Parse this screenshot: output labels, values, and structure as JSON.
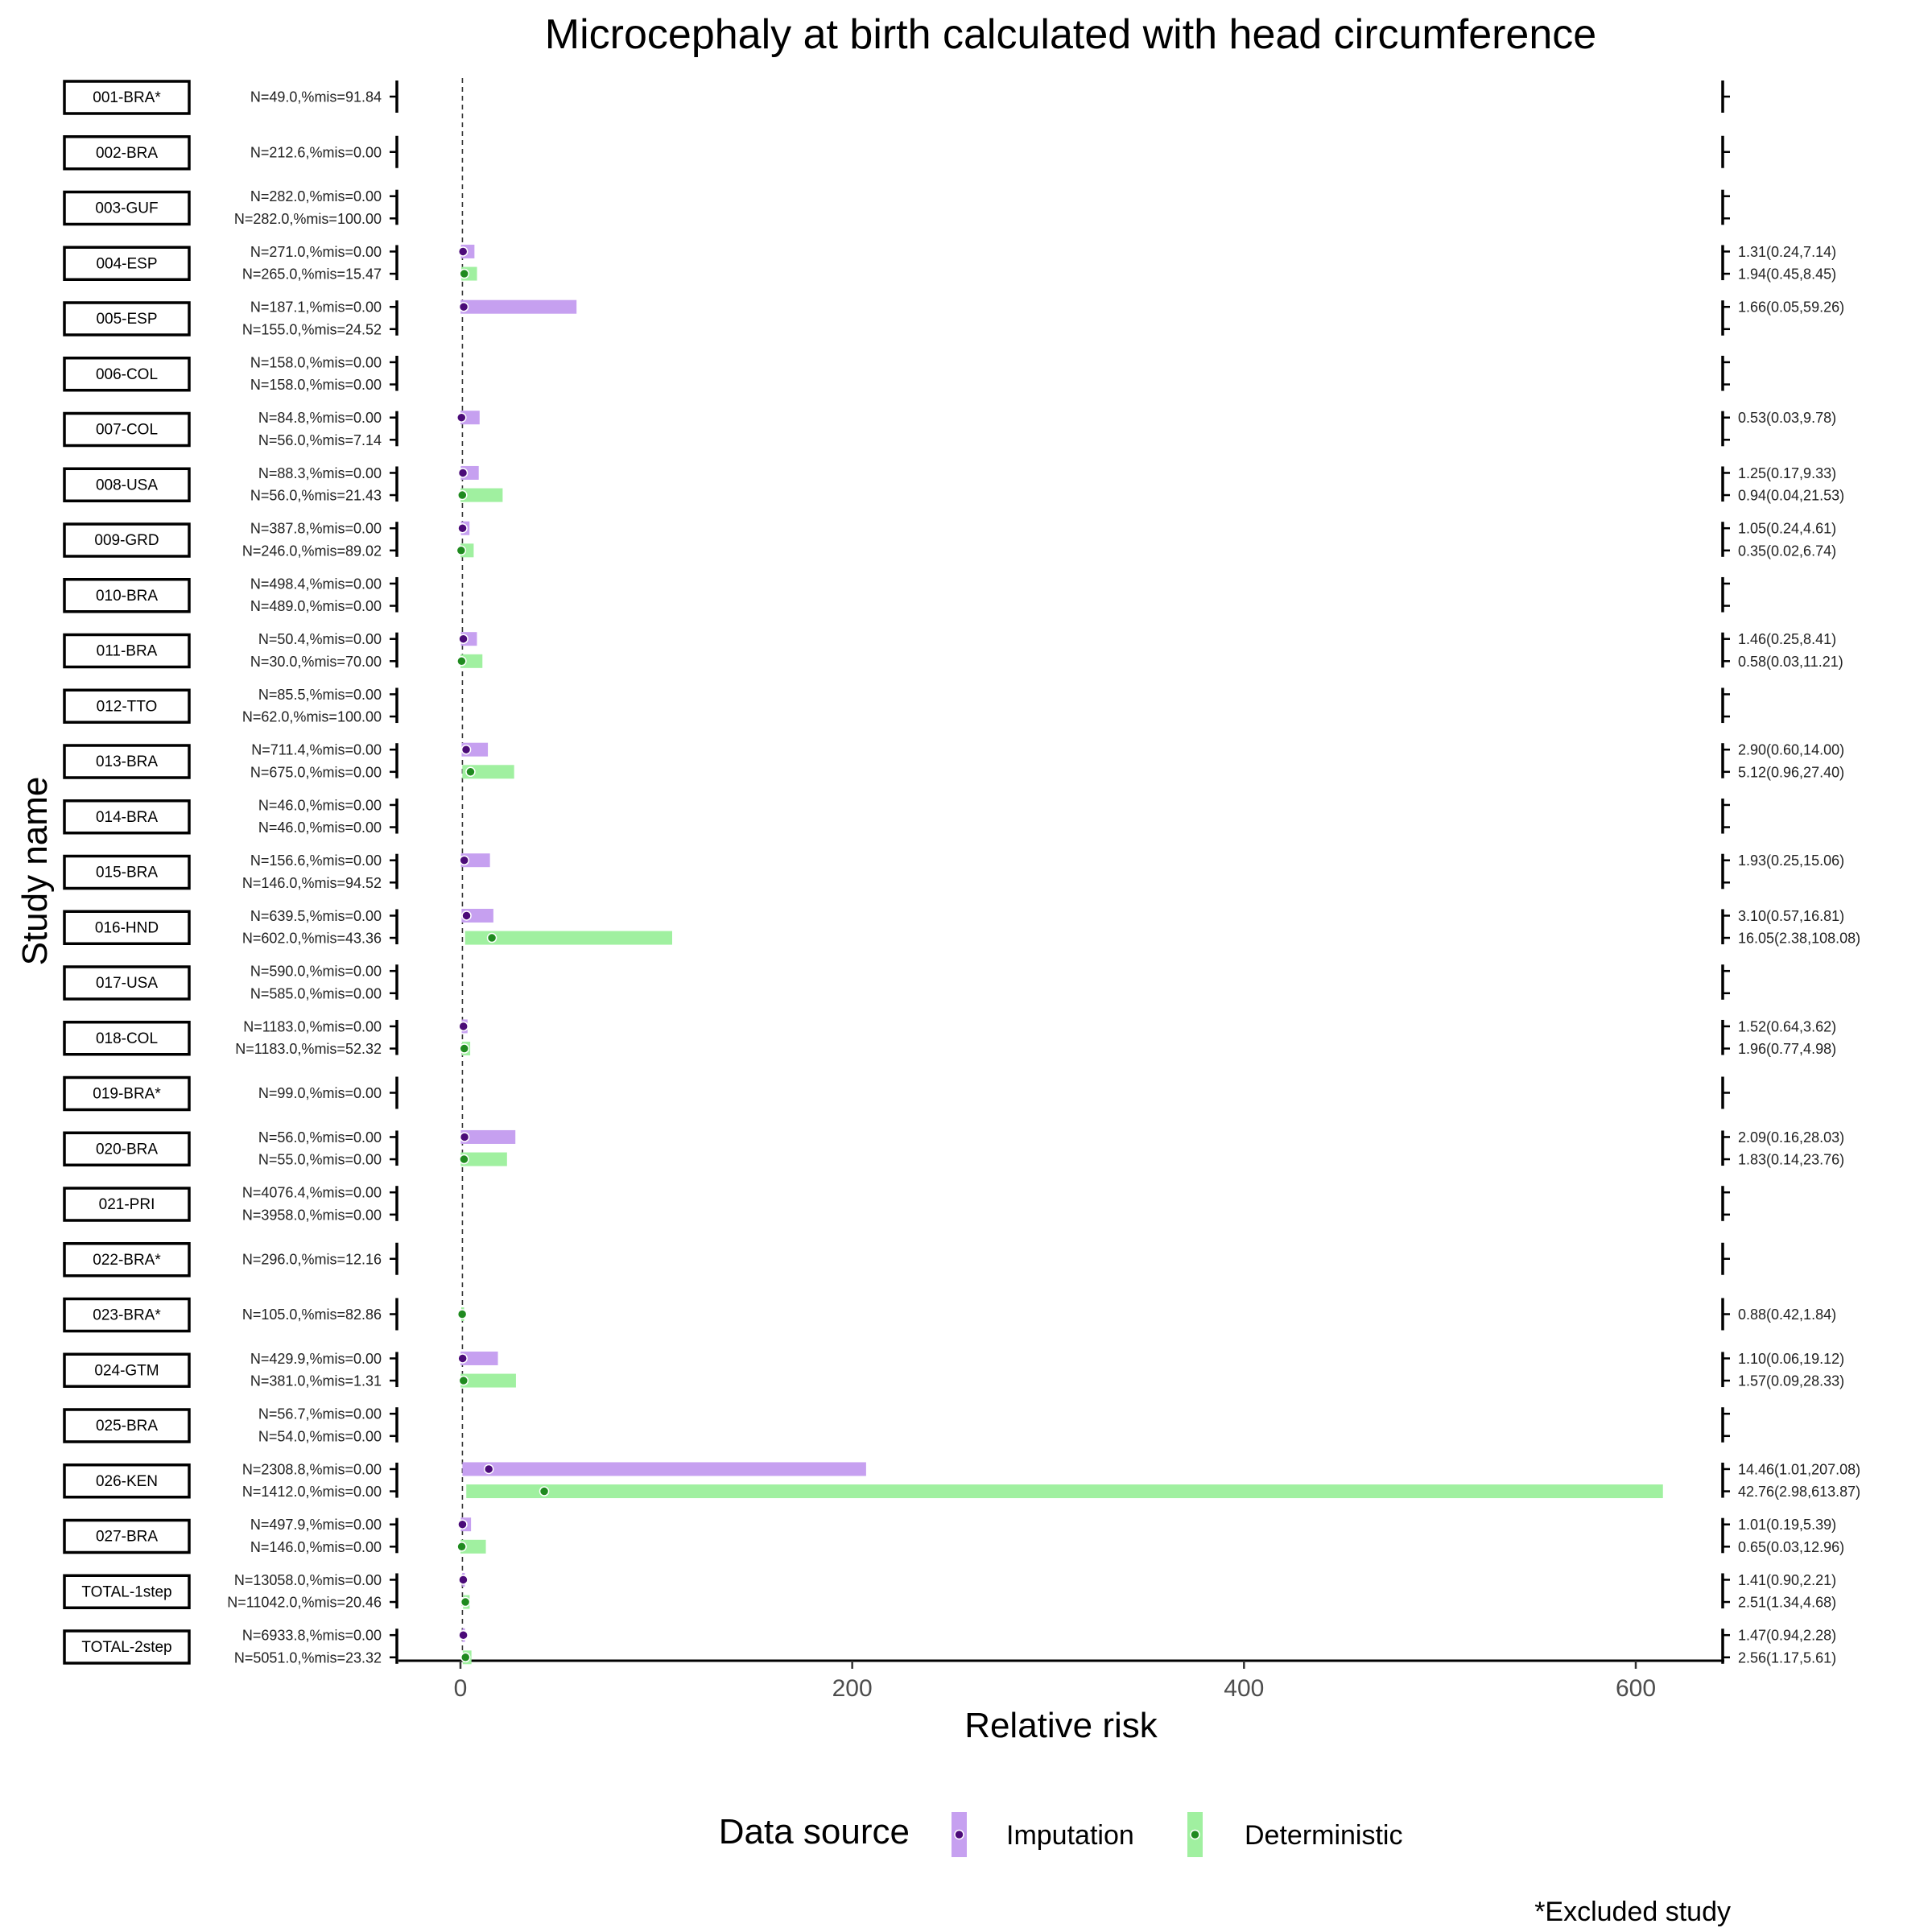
{
  "chart_data": {
    "type": "forest",
    "title": "Microcephaly at birth calculated with head circumference",
    "xlabel": "Relative risk",
    "ylabel": "Study name",
    "xlim": [
      -30,
      643
    ],
    "xticks": [
      0,
      200,
      400,
      600
    ],
    "reference_line": 1,
    "legend": {
      "title": "Data source",
      "position": "bottom",
      "entries": [
        {
          "name": "Imputation",
          "bar_color": "#c6a0f0",
          "point_color": "#4b0b78"
        },
        {
          "name": "Deterministic",
          "bar_color": "#a0f0a0",
          "point_color": "#1f8a1f"
        }
      ]
    },
    "footnote": "*Excluded study",
    "studies": [
      {
        "name": "001-BRA*",
        "rows": [
          {
            "source": "Imputation",
            "n_label": "N=49.0,%mis=91.84"
          }
        ]
      },
      {
        "name": "002-BRA",
        "rows": [
          {
            "source": "Imputation",
            "n_label": "N=212.6,%mis=0.00"
          }
        ]
      },
      {
        "name": "003-GUF",
        "rows": [
          {
            "source": "Imputation",
            "n_label": "N=282.0,%mis=0.00"
          },
          {
            "source": "Deterministic",
            "n_label": "N=282.0,%mis=100.00"
          }
        ]
      },
      {
        "name": "004-ESP",
        "rows": [
          {
            "source": "Imputation",
            "n_label": "N=271.0,%mis=0.00",
            "rr": 1.31,
            "lo": 0.24,
            "hi": 7.14,
            "ci_label": "1.31(0.24,7.14)"
          },
          {
            "source": "Deterministic",
            "n_label": "N=265.0,%mis=15.47",
            "rr": 1.94,
            "lo": 0.45,
            "hi": 8.45,
            "ci_label": "1.94(0.45,8.45)"
          }
        ]
      },
      {
        "name": "005-ESP",
        "rows": [
          {
            "source": "Imputation",
            "n_label": "N=187.1,%mis=0.00",
            "rr": 1.66,
            "lo": 0.05,
            "hi": 59.26,
            "ci_label": "1.66(0.05,59.26)"
          },
          {
            "source": "Deterministic",
            "n_label": "N=155.0,%mis=24.52"
          }
        ]
      },
      {
        "name": "006-COL",
        "rows": [
          {
            "source": "Imputation",
            "n_label": "N=158.0,%mis=0.00"
          },
          {
            "source": "Deterministic",
            "n_label": "N=158.0,%mis=0.00"
          }
        ]
      },
      {
        "name": "007-COL",
        "rows": [
          {
            "source": "Imputation",
            "n_label": "N=84.8,%mis=0.00",
            "rr": 0.53,
            "lo": 0.03,
            "hi": 9.78,
            "ci_label": "0.53(0.03,9.78)"
          },
          {
            "source": "Deterministic",
            "n_label": "N=56.0,%mis=7.14"
          }
        ]
      },
      {
        "name": "008-USA",
        "rows": [
          {
            "source": "Imputation",
            "n_label": "N=88.3,%mis=0.00",
            "rr": 1.25,
            "lo": 0.17,
            "hi": 9.33,
            "ci_label": "1.25(0.17,9.33)"
          },
          {
            "source": "Deterministic",
            "n_label": "N=56.0,%mis=21.43",
            "rr": 0.94,
            "lo": 0.04,
            "hi": 21.53,
            "ci_label": "0.94(0.04,21.53)"
          }
        ]
      },
      {
        "name": "009-GRD",
        "rows": [
          {
            "source": "Imputation",
            "n_label": "N=387.8,%mis=0.00",
            "rr": 1.05,
            "lo": 0.24,
            "hi": 4.61,
            "ci_label": "1.05(0.24,4.61)"
          },
          {
            "source": "Deterministic",
            "n_label": "N=246.0,%mis=89.02",
            "rr": 0.35,
            "lo": 0.02,
            "hi": 6.74,
            "ci_label": "0.35(0.02,6.74)"
          }
        ]
      },
      {
        "name": "010-BRA",
        "rows": [
          {
            "source": "Imputation",
            "n_label": "N=498.4,%mis=0.00"
          },
          {
            "source": "Deterministic",
            "n_label": "N=489.0,%mis=0.00"
          }
        ]
      },
      {
        "name": "011-BRA",
        "rows": [
          {
            "source": "Imputation",
            "n_label": "N=50.4,%mis=0.00",
            "rr": 1.46,
            "lo": 0.25,
            "hi": 8.41,
            "ci_label": "1.46(0.25,8.41)"
          },
          {
            "source": "Deterministic",
            "n_label": "N=30.0,%mis=70.00",
            "rr": 0.58,
            "lo": 0.03,
            "hi": 11.21,
            "ci_label": "0.58(0.03,11.21)"
          }
        ]
      },
      {
        "name": "012-TTO",
        "rows": [
          {
            "source": "Imputation",
            "n_label": "N=85.5,%mis=0.00"
          },
          {
            "source": "Deterministic",
            "n_label": "N=62.0,%mis=100.00"
          }
        ]
      },
      {
        "name": "013-BRA",
        "rows": [
          {
            "source": "Imputation",
            "n_label": "N=711.4,%mis=0.00",
            "rr": 2.9,
            "lo": 0.6,
            "hi": 14.0,
            "ci_label": "2.90(0.60,14.00)"
          },
          {
            "source": "Deterministic",
            "n_label": "N=675.0,%mis=0.00",
            "rr": 5.12,
            "lo": 0.96,
            "hi": 27.4,
            "ci_label": "5.12(0.96,27.40)"
          }
        ]
      },
      {
        "name": "014-BRA",
        "rows": [
          {
            "source": "Imputation",
            "n_label": "N=46.0,%mis=0.00"
          },
          {
            "source": "Deterministic",
            "n_label": "N=46.0,%mis=0.00"
          }
        ]
      },
      {
        "name": "015-BRA",
        "rows": [
          {
            "source": "Imputation",
            "n_label": "N=156.6,%mis=0.00",
            "rr": 1.93,
            "lo": 0.25,
            "hi": 15.06,
            "ci_label": "1.93(0.25,15.06)"
          },
          {
            "source": "Deterministic",
            "n_label": "N=146.0,%mis=94.52"
          }
        ]
      },
      {
        "name": "016-HND",
        "rows": [
          {
            "source": "Imputation",
            "n_label": "N=639.5,%mis=0.00",
            "rr": 3.1,
            "lo": 0.57,
            "hi": 16.81,
            "ci_label": "3.10(0.57,16.81)"
          },
          {
            "source": "Deterministic",
            "n_label": "N=602.0,%mis=43.36",
            "rr": 16.05,
            "lo": 2.38,
            "hi": 108.08,
            "ci_label": "16.05(2.38,108.08)"
          }
        ]
      },
      {
        "name": "017-USA",
        "rows": [
          {
            "source": "Imputation",
            "n_label": "N=590.0,%mis=0.00"
          },
          {
            "source": "Deterministic",
            "n_label": "N=585.0,%mis=0.00"
          }
        ]
      },
      {
        "name": "018-COL",
        "rows": [
          {
            "source": "Imputation",
            "n_label": "N=1183.0,%mis=0.00",
            "rr": 1.52,
            "lo": 0.64,
            "hi": 3.62,
            "ci_label": "1.52(0.64,3.62)"
          },
          {
            "source": "Deterministic",
            "n_label": "N=1183.0,%mis=52.32",
            "rr": 1.96,
            "lo": 0.77,
            "hi": 4.98,
            "ci_label": "1.96(0.77,4.98)"
          }
        ]
      },
      {
        "name": "019-BRA*",
        "rows": [
          {
            "source": "Imputation",
            "n_label": "N=99.0,%mis=0.00"
          }
        ]
      },
      {
        "name": "020-BRA",
        "rows": [
          {
            "source": "Imputation",
            "n_label": "N=56.0,%mis=0.00",
            "rr": 2.09,
            "lo": 0.16,
            "hi": 28.03,
            "ci_label": "2.09(0.16,28.03)"
          },
          {
            "source": "Deterministic",
            "n_label": "N=55.0,%mis=0.00",
            "rr": 1.83,
            "lo": 0.14,
            "hi": 23.76,
            "ci_label": "1.83(0.14,23.76)"
          }
        ]
      },
      {
        "name": "021-PRI",
        "rows": [
          {
            "source": "Imputation",
            "n_label": "N=4076.4,%mis=0.00"
          },
          {
            "source": "Deterministic",
            "n_label": "N=3958.0,%mis=0.00"
          }
        ]
      },
      {
        "name": "022-BRA*",
        "rows": [
          {
            "source": "Deterministic",
            "n_label": "N=296.0,%mis=12.16"
          }
        ]
      },
      {
        "name": "023-BRA*",
        "rows": [
          {
            "source": "Deterministic",
            "n_label": "N=105.0,%mis=82.86",
            "rr": 0.88,
            "lo": 0.42,
            "hi": 1.84,
            "ci_label": "0.88(0.42,1.84)"
          }
        ]
      },
      {
        "name": "024-GTM",
        "rows": [
          {
            "source": "Imputation",
            "n_label": "N=429.9,%mis=0.00",
            "rr": 1.1,
            "lo": 0.06,
            "hi": 19.12,
            "ci_label": "1.10(0.06,19.12)"
          },
          {
            "source": "Deterministic",
            "n_label": "N=381.0,%mis=1.31",
            "rr": 1.57,
            "lo": 0.09,
            "hi": 28.33,
            "ci_label": "1.57(0.09,28.33)"
          }
        ]
      },
      {
        "name": "025-BRA",
        "rows": [
          {
            "source": "Imputation",
            "n_label": "N=56.7,%mis=0.00"
          },
          {
            "source": "Deterministic",
            "n_label": "N=54.0,%mis=0.00"
          }
        ]
      },
      {
        "name": "026-KEN",
        "rows": [
          {
            "source": "Imputation",
            "n_label": "N=2308.8,%mis=0.00",
            "rr": 14.46,
            "lo": 1.01,
            "hi": 207.08,
            "ci_label": "14.46(1.01,207.08)"
          },
          {
            "source": "Deterministic",
            "n_label": "N=1412.0,%mis=0.00",
            "rr": 42.76,
            "lo": 2.98,
            "hi": 613.87,
            "ci_label": "42.76(2.98,613.87)"
          }
        ]
      },
      {
        "name": "027-BRA",
        "rows": [
          {
            "source": "Imputation",
            "n_label": "N=497.9,%mis=0.00",
            "rr": 1.01,
            "lo": 0.19,
            "hi": 5.39,
            "ci_label": "1.01(0.19,5.39)"
          },
          {
            "source": "Deterministic",
            "n_label": "N=146.0,%mis=0.00",
            "rr": 0.65,
            "lo": 0.03,
            "hi": 12.96,
            "ci_label": "0.65(0.03,12.96)"
          }
        ]
      },
      {
        "name": "TOTAL-1step",
        "rows": [
          {
            "source": "Imputation",
            "n_label": "N=13058.0,%mis=0.00",
            "rr": 1.41,
            "lo": 0.9,
            "hi": 2.21,
            "ci_label": "1.41(0.90,2.21)"
          },
          {
            "source": "Deterministic",
            "n_label": "N=11042.0,%mis=20.46",
            "rr": 2.51,
            "lo": 1.34,
            "hi": 4.68,
            "ci_label": "2.51(1.34,4.68)"
          }
        ]
      },
      {
        "name": "TOTAL-2step",
        "rows": [
          {
            "source": "Imputation",
            "n_label": "N=6933.8,%mis=0.00",
            "rr": 1.47,
            "lo": 0.94,
            "hi": 2.28,
            "ci_label": "1.47(0.94,2.28)"
          },
          {
            "source": "Deterministic",
            "n_label": "N=5051.0,%mis=23.32",
            "rr": 2.56,
            "lo": 1.17,
            "hi": 5.61,
            "ci_label": "2.56(1.17,5.61)"
          }
        ]
      }
    ]
  }
}
